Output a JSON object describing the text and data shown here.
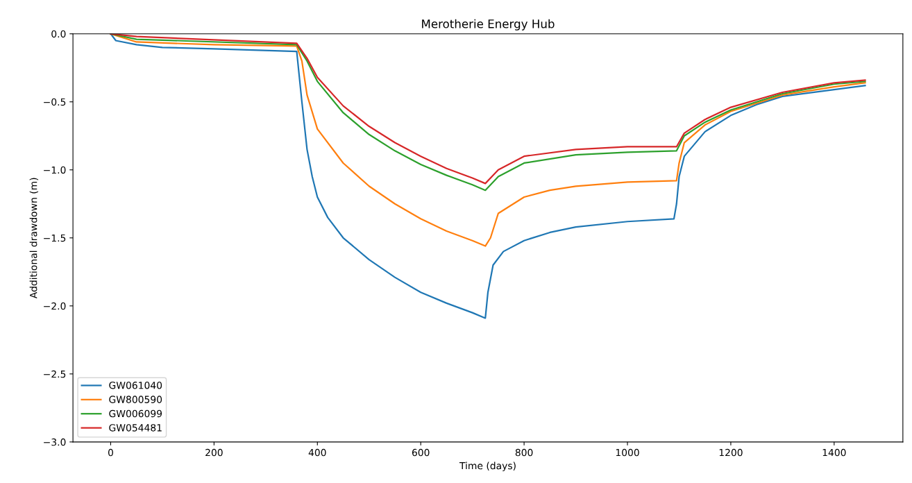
{
  "chart_data": {
    "type": "line",
    "title": "Merotherie Energy Hub",
    "xlabel": "Time (days)",
    "ylabel": "Additional drawdown (m)",
    "xlim": [
      -73,
      1533
    ],
    "ylim": [
      -3.0,
      0.0
    ],
    "xticks": [
      0,
      200,
      400,
      600,
      800,
      1000,
      1200,
      1400
    ],
    "yticks": [
      {
        "value": -3.0,
        "label": "−3.0"
      },
      {
        "value": -2.5,
        "label": "−2.5"
      },
      {
        "value": -2.0,
        "label": "−2.0"
      },
      {
        "value": -1.5,
        "label": "−1.5"
      },
      {
        "value": -1.0,
        "label": "−1.0"
      },
      {
        "value": -0.5,
        "label": "−0.5"
      },
      {
        "value": 0.0,
        "label": "0.0"
      }
    ],
    "grid": false,
    "legend": "bottom left",
    "marker": "none",
    "line_style": "solid",
    "series": [
      {
        "name": "GW061040",
        "color": "#1f77b4",
        "x": [
          0,
          10,
          50,
          100,
          200,
          360,
          370,
          380,
          390,
          400,
          420,
          450,
          500,
          550,
          600,
          650,
          700,
          725,
          730,
          740,
          760,
          800,
          850,
          900,
          1000,
          1090,
          1095,
          1100,
          1110,
          1150,
          1200,
          1250,
          1300,
          1400,
          1460
        ],
        "values": [
          0,
          -0.05,
          -0.08,
          -0.1,
          -0.11,
          -0.13,
          -0.5,
          -0.85,
          -1.05,
          -1.2,
          -1.35,
          -1.5,
          -1.66,
          -1.79,
          -1.9,
          -1.98,
          -2.05,
          -2.09,
          -1.9,
          -1.7,
          -1.6,
          -1.52,
          -1.46,
          -1.42,
          -1.38,
          -1.36,
          -1.25,
          -1.05,
          -0.9,
          -0.72,
          -0.6,
          -0.52,
          -0.46,
          -0.41,
          -0.38
        ]
      },
      {
        "name": "GW800590",
        "color": "#ff7f0e",
        "x": [
          0,
          50,
          200,
          360,
          370,
          380,
          400,
          450,
          500,
          550,
          600,
          650,
          700,
          725,
          735,
          750,
          800,
          850,
          900,
          1000,
          1095,
          1100,
          1110,
          1150,
          1200,
          1300,
          1400,
          1460
        ],
        "values": [
          0,
          -0.06,
          -0.08,
          -0.09,
          -0.2,
          -0.45,
          -0.7,
          -0.95,
          -1.12,
          -1.25,
          -1.36,
          -1.45,
          -1.52,
          -1.56,
          -1.5,
          -1.32,
          -1.2,
          -1.15,
          -1.12,
          -1.09,
          -1.08,
          -0.95,
          -0.8,
          -0.67,
          -0.57,
          -0.45,
          -0.39,
          -0.36
        ]
      },
      {
        "name": "GW006099",
        "color": "#2ca02c",
        "x": [
          0,
          50,
          360,
          380,
          400,
          450,
          500,
          550,
          600,
          650,
          700,
          725,
          750,
          800,
          900,
          1000,
          1095,
          1110,
          1150,
          1200,
          1300,
          1400,
          1460
        ],
        "values": [
          0,
          -0.04,
          -0.08,
          -0.2,
          -0.35,
          -0.58,
          -0.74,
          -0.86,
          -0.96,
          -1.04,
          -1.11,
          -1.15,
          -1.05,
          -0.95,
          -0.89,
          -0.87,
          -0.86,
          -0.75,
          -0.65,
          -0.56,
          -0.44,
          -0.37,
          -0.35
        ]
      },
      {
        "name": "GW054481",
        "color": "#d62728",
        "x": [
          0,
          50,
          360,
          380,
          400,
          450,
          500,
          550,
          600,
          650,
          700,
          725,
          750,
          800,
          900,
          1000,
          1095,
          1110,
          1150,
          1200,
          1300,
          1400,
          1460
        ],
        "values": [
          0,
          -0.02,
          -0.07,
          -0.18,
          -0.32,
          -0.53,
          -0.68,
          -0.8,
          -0.9,
          -0.99,
          -1.06,
          -1.1,
          -1.0,
          -0.9,
          -0.85,
          -0.83,
          -0.83,
          -0.73,
          -0.63,
          -0.54,
          -0.43,
          -0.36,
          -0.34
        ]
      }
    ]
  }
}
